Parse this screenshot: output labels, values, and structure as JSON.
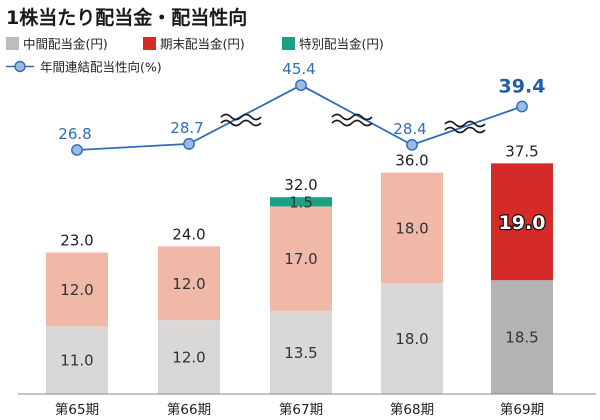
{
  "title": "1株当たり配当金・配当性向",
  "colors": {
    "interim": "#d9d8d7",
    "interim_highlight": "#b3b3b3",
    "yearend": "#efb8a7",
    "yearend_highlight": "#d42b28",
    "special": "#1aa084",
    "line": "#2f6db5",
    "marker": "#9bbbe3",
    "squiggle": "#1a1a1a",
    "axis": "#888888"
  },
  "legend": [
    {
      "label": "中間配当金(円)",
      "color": "#bdbdbd",
      "icon": "gray-square-icon",
      "shape": "square"
    },
    {
      "label": "期末配当金(円)",
      "color": "#d42b28",
      "icon": "red-square-icon",
      "shape": "square"
    },
    {
      "label": "特別配当金(円)",
      "color": "#1aa084",
      "icon": "green-square-icon",
      "shape": "square"
    },
    {
      "label": "年間連結配当性向(%)",
      "color": "#2f6db5",
      "icon": "line-marker-icon",
      "shape": "line"
    }
  ],
  "chart_data": {
    "type": "bar",
    "stacked": true,
    "categories": [
      "第65期",
      "第66期",
      "第67期",
      "第68期",
      "第69期"
    ],
    "series": [
      {
        "name": "中間配当金(円)",
        "values": [
          11.0,
          12.0,
          13.5,
          18.0,
          18.5
        ],
        "labels": [
          "11.0",
          "12.0",
          "13.5",
          "18.0",
          "18.5"
        ]
      },
      {
        "name": "期末配当金(円)",
        "values": [
          12.0,
          12.0,
          17.0,
          18.0,
          19.0
        ],
        "labels": [
          "12.0",
          "12.0",
          "17.0",
          "18.0",
          "19.0"
        ]
      },
      {
        "name": "特別配当金(円)",
        "values": [
          0,
          0,
          1.5,
          0,
          0
        ],
        "labels": [
          "",
          "",
          "1.5",
          "",
          ""
        ]
      }
    ],
    "totals": [
      23.0,
      24.0,
      32.0,
      36.0,
      37.5
    ],
    "total_labels": [
      "23.0",
      "24.0",
      "32.0",
      "36.0",
      "37.5"
    ],
    "line": {
      "name": "年間連結配当性向(%)",
      "values": [
        26.8,
        28.7,
        45.4,
        28.4,
        39.4
      ],
      "labels": [
        "26.8",
        "28.7",
        "45.4",
        "28.4",
        "39.4"
      ]
    },
    "highlight_index": 4,
    "axis_breaks": true,
    "ylim_bars": [
      0,
      40
    ],
    "grid": false
  }
}
